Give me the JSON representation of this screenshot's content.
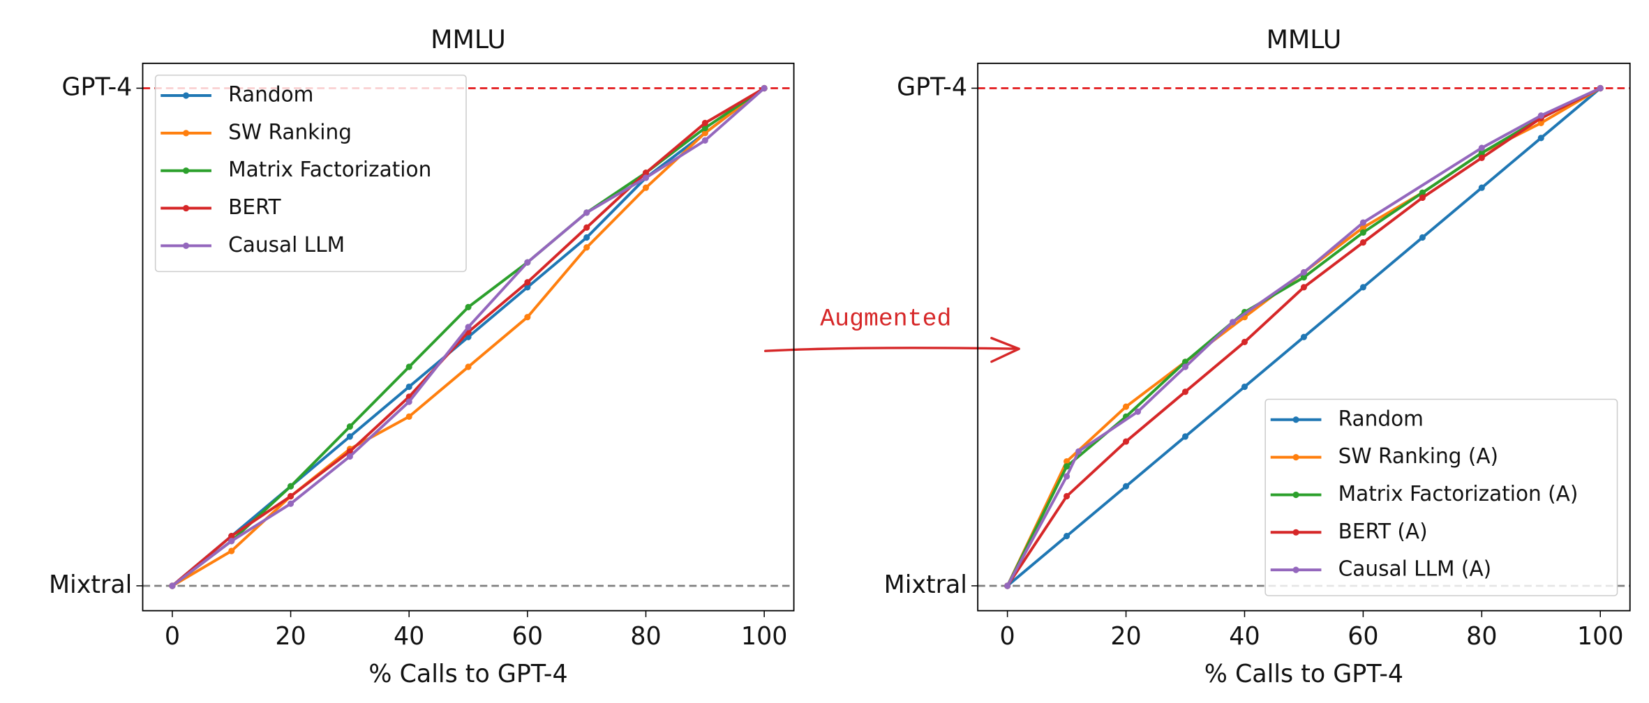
{
  "annotation": "Augmented",
  "chart_data": [
    {
      "type": "line",
      "title": "MMLU",
      "xlabel": "% Calls to GPT-4",
      "x": [
        0,
        10,
        20,
        30,
        40,
        50,
        60,
        70,
        80,
        90,
        100
      ],
      "xlim": [
        -5,
        105
      ],
      "xticks": [
        0,
        20,
        40,
        60,
        80,
        100
      ],
      "ylim": [
        -0.05,
        1.05
      ],
      "yticks": [
        {
          "value": 0,
          "label": "Mixtral"
        },
        {
          "value": 1,
          "label": "GPT-4"
        }
      ],
      "legend": "upper left",
      "series": [
        {
          "name": "Random",
          "color": "#1f77b4",
          "values": [
            0,
            0.1,
            0.2,
            0.3,
            0.4,
            0.5,
            0.6,
            0.7,
            0.82,
            0.91,
            1
          ]
        },
        {
          "name": "SW Ranking",
          "color": "#ff7f0e",
          "values": [
            0,
            0.07,
            0.18,
            0.275,
            0.34,
            0.44,
            0.54,
            0.68,
            0.8,
            0.91,
            1
          ]
        },
        {
          "name": "Matrix Factorization",
          "color": "#2ca02c",
          "values": [
            0,
            0.09,
            0.2,
            0.32,
            0.44,
            0.56,
            0.65,
            0.75,
            0.83,
            0.92,
            1
          ]
        },
        {
          "name": "BERT",
          "color": "#d62728",
          "values": [
            0,
            0.1,
            0.18,
            0.27,
            0.38,
            0.51,
            0.61,
            0.72,
            0.83,
            0.93,
            1
          ]
        },
        {
          "name": "Causal LLM",
          "color": "#9467bd",
          "values": [
            0,
            0.09,
            0.165,
            0.26,
            0.37,
            0.52,
            0.65,
            0.75,
            0.82,
            0.895,
            1
          ]
        }
      ]
    },
    {
      "type": "line",
      "title": "MMLU",
      "xlabel": "% Calls to GPT-4",
      "x": [
        0,
        10,
        20,
        30,
        40,
        50,
        60,
        70,
        80,
        90,
        100
      ],
      "xlim": [
        -5,
        105
      ],
      "xticks": [
        0,
        20,
        40,
        60,
        80,
        100
      ],
      "ylim": [
        -0.05,
        1.05
      ],
      "yticks": [
        {
          "value": 0,
          "label": "Mixtral"
        },
        {
          "value": 1,
          "label": "GPT-4"
        }
      ],
      "legend": "lower right",
      "series": [
        {
          "name": "Random",
          "color": "#1f77b4",
          "values": [
            0,
            0.1,
            0.2,
            0.3,
            0.4,
            0.5,
            0.6,
            0.7,
            0.8,
            0.9,
            1
          ]
        },
        {
          "name": "SW Ranking (A)",
          "color": "#ff7f0e",
          "values": [
            0,
            0.25,
            0.36,
            0.45,
            0.54,
            0.63,
            0.72,
            0.79,
            0.87,
            0.93,
            1
          ]
        },
        {
          "name": "Matrix Factorization (A)",
          "color": "#2ca02c",
          "values": [
            0,
            0.24,
            0.34,
            0.45,
            0.55,
            0.62,
            0.71,
            0.79,
            0.87,
            0.94,
            1
          ]
        },
        {
          "name": "BERT (A)",
          "color": "#d62728",
          "values": [
            0,
            0.18,
            0.29,
            0.39,
            0.49,
            0.6,
            0.69,
            0.78,
            0.86,
            0.94,
            1
          ]
        },
        {
          "name": "Causal LLM (A)",
          "color": "#9467bd",
          "x": [
            0,
            10,
            12,
            22,
            30,
            38,
            50,
            60,
            80,
            90,
            100
          ],
          "values": [
            0,
            0.22,
            0.27,
            0.35,
            0.44,
            0.53,
            0.63,
            0.73,
            0.88,
            0.945,
            1
          ]
        }
      ]
    }
  ]
}
